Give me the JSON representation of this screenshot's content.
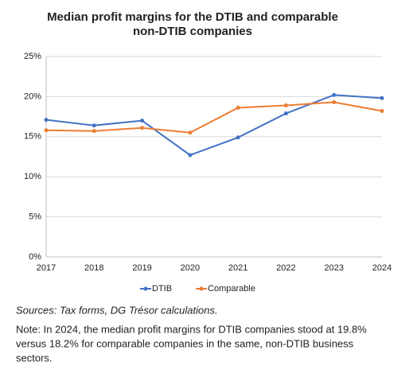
{
  "chart_data": {
    "type": "line",
    "title": [
      "Median profit margins for the DTIB and comparable",
      "non-DTIB companies"
    ],
    "categories": [
      "2017",
      "2018",
      "2019",
      "2020",
      "2021",
      "2022",
      "2023",
      "2024"
    ],
    "series": [
      {
        "name": "DTIB",
        "color": "#4472c4",
        "values": [
          17.1,
          16.4,
          17.0,
          12.7,
          14.9,
          17.9,
          20.2,
          19.8
        ]
      },
      {
        "name": "Comparable",
        "color": "#ed7d31",
        "values": [
          15.8,
          15.7,
          16.1,
          15.5,
          18.6,
          18.9,
          19.3,
          18.2
        ]
      }
    ],
    "ylim": [
      0,
      25
    ],
    "yticks": [
      {
        "value": 0,
        "label": "0%"
      },
      {
        "value": 5,
        "label": "5%"
      },
      {
        "value": 10,
        "label": "10%"
      },
      {
        "value": 15,
        "label": "15%"
      },
      {
        "value": 20,
        "label": "20%"
      },
      {
        "value": 25,
        "label": "25%"
      }
    ],
    "grid": true,
    "legend": "bottom",
    "source": "Sources: Tax forms, DG Trésor calculations.",
    "note": [
      "Note: In 2024, the median profit margins for DTIB companies stood at 19.8%",
      "versus 18.2% for comparable companies in the same, non-DTIB business",
      "sectors."
    ]
  }
}
